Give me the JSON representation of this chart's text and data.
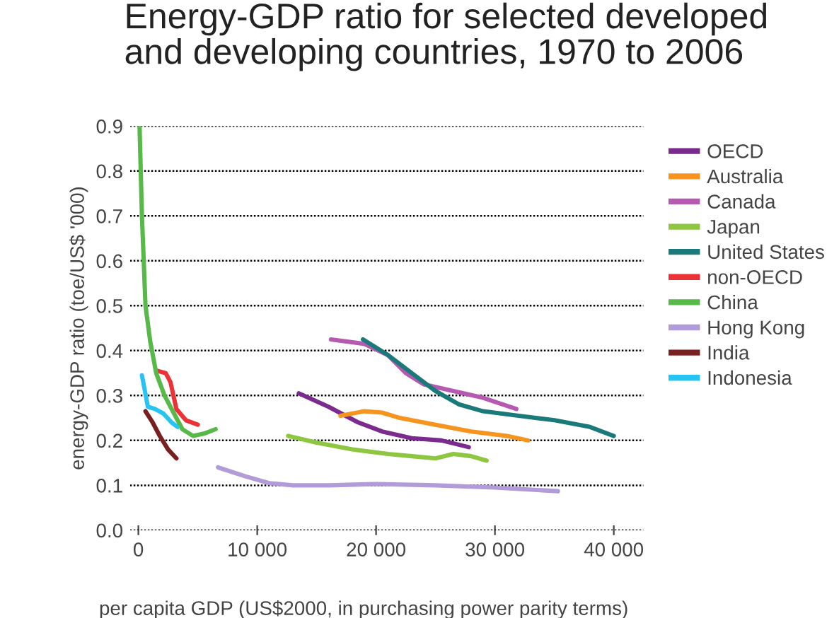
{
  "chart_data": {
    "type": "line",
    "title": "Energy-GDP ratio for selected developed\nand developing countries, 1970 to 2006",
    "xlabel": "per capita GDP (US$2000, in purchasing power parity terms)",
    "ylabel": "energy-GDP ratio (toe/US$ '000)",
    "xlim": [
      -700,
      42500
    ],
    "ylim": [
      0,
      0.9
    ],
    "xticks": [
      0,
      {
        "value": 10000,
        "label": "10 000"
      },
      {
        "value": 20000,
        "label": "20 000"
      },
      {
        "value": 30000,
        "label": "30 000"
      },
      {
        "value": 40000,
        "label": "40 000"
      }
    ],
    "yticks": [
      {
        "value": 0,
        "label": "0.0"
      },
      0.1,
      0.2,
      0.3,
      0.4,
      0.5,
      0.6,
      0.7,
      0.8,
      0.9
    ],
    "grid": "y",
    "legend": "right",
    "marker": "none",
    "line_style": "solid",
    "series": [
      {
        "name": "OECD",
        "color": "#7b2a8e",
        "x": [
          13500,
          16000,
          18500,
          20500,
          23000,
          25500,
          27800
        ],
        "values": [
          0.305,
          0.275,
          0.24,
          0.22,
          0.205,
          0.2,
          0.185
        ]
      },
      {
        "name": "Australia",
        "color": "#f7941d",
        "x": [
          17000,
          19000,
          20500,
          22000,
          25000,
          28000,
          31000,
          32800
        ],
        "values": [
          0.255,
          0.265,
          0.262,
          0.25,
          0.235,
          0.22,
          0.21,
          0.2
        ]
      },
      {
        "name": "Canada",
        "color": "#b55ab0",
        "x": [
          16200,
          19000,
          21000,
          22500,
          24000,
          26500,
          29000,
          31800
        ],
        "values": [
          0.425,
          0.415,
          0.39,
          0.35,
          0.325,
          0.31,
          0.295,
          0.27
        ]
      },
      {
        "name": "Japan",
        "color": "#8dc63f",
        "x": [
          12600,
          15000,
          18000,
          21000,
          23000,
          25000,
          26500,
          28000,
          29300
        ],
        "values": [
          0.21,
          0.195,
          0.18,
          0.17,
          0.165,
          0.16,
          0.17,
          0.165,
          0.155
        ]
      },
      {
        "name": "United States",
        "color": "#1a7a7a",
        "x": [
          18900,
          21000,
          23000,
          25000,
          27000,
          29000,
          32000,
          35000,
          38000,
          40000
        ],
        "values": [
          0.425,
          0.39,
          0.35,
          0.31,
          0.28,
          0.265,
          0.255,
          0.245,
          0.23,
          0.21
        ]
      },
      {
        "name": "non-OECD",
        "color": "#ed3237",
        "x": [
          1600,
          2300,
          2700,
          3200,
          4000,
          5000
        ],
        "values": [
          0.355,
          0.35,
          0.33,
          0.27,
          0.245,
          0.235
        ]
      },
      {
        "name": "China",
        "color": "#57b947",
        "x": [
          100,
          300,
          600,
          1000,
          1500,
          2200,
          3000,
          3700,
          4600,
          5500,
          6500
        ],
        "values": [
          0.9,
          0.7,
          0.5,
          0.42,
          0.35,
          0.3,
          0.26,
          0.225,
          0.21,
          0.215,
          0.225
        ]
      },
      {
        "name": "Hong Kong",
        "color": "#b19cd9",
        "x": [
          6700,
          9000,
          11000,
          13000,
          16000,
          20000,
          25000,
          30000,
          35300
        ],
        "values": [
          0.14,
          0.12,
          0.105,
          0.1,
          0.1,
          0.103,
          0.1,
          0.095,
          0.087
        ]
      },
      {
        "name": "India",
        "color": "#7a1f1f",
        "x": [
          600,
          1200,
          1800,
          2500,
          3200
        ],
        "values": [
          0.265,
          0.24,
          0.21,
          0.18,
          0.16
        ]
      },
      {
        "name": "Indonesia",
        "color": "#27c4f3",
        "x": [
          300,
          800,
          1400,
          2100,
          2800,
          3300
        ],
        "values": [
          0.345,
          0.275,
          0.27,
          0.26,
          0.24,
          0.23
        ]
      }
    ]
  }
}
